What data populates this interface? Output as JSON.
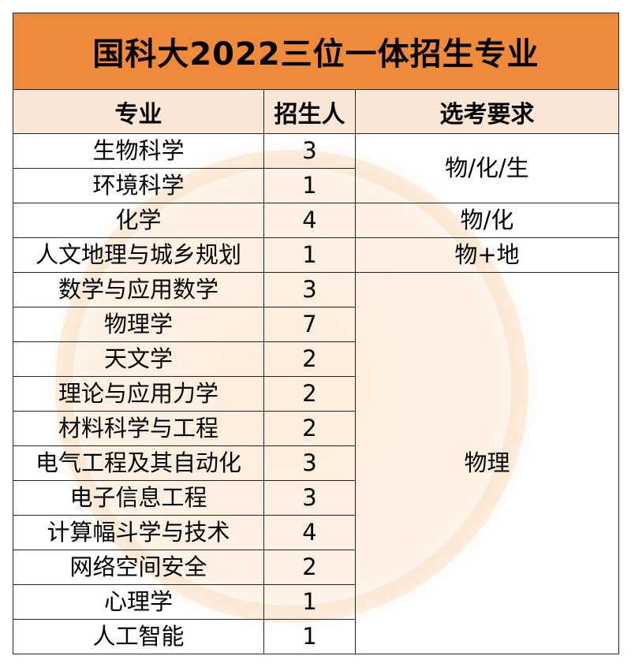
{
  "title": "国科大2022三位一体招生专业",
  "headers": {
    "major": "专业",
    "count": "招生人",
    "requirement": "选考要求"
  },
  "rows": [
    {
      "major": "生物科学",
      "count": "3"
    },
    {
      "major": "环境科学",
      "count": "1"
    },
    {
      "major": "化学",
      "count": "4"
    },
    {
      "major": "人文地理与城乡规划",
      "count": "1"
    },
    {
      "major": "数学与应用数学",
      "count": "3"
    },
    {
      "major": "物理学",
      "count": "7"
    },
    {
      "major": "天文学",
      "count": "2"
    },
    {
      "major": "理论与应用力学",
      "count": "2"
    },
    {
      "major": "材料科学与工程",
      "count": "2"
    },
    {
      "major": "电气工程及其自动化",
      "count": "3"
    },
    {
      "major": "电子信息工程",
      "count": "3"
    },
    {
      "major": "计算幅斗学与技术",
      "count": "4"
    },
    {
      "major": "网络空间安全",
      "count": "2"
    },
    {
      "major": "心理学",
      "count": "1"
    },
    {
      "major": "人工智能",
      "count": "1"
    }
  ],
  "requirements": [
    "物/化/生",
    "物/化",
    "物+地",
    "物理"
  ]
}
